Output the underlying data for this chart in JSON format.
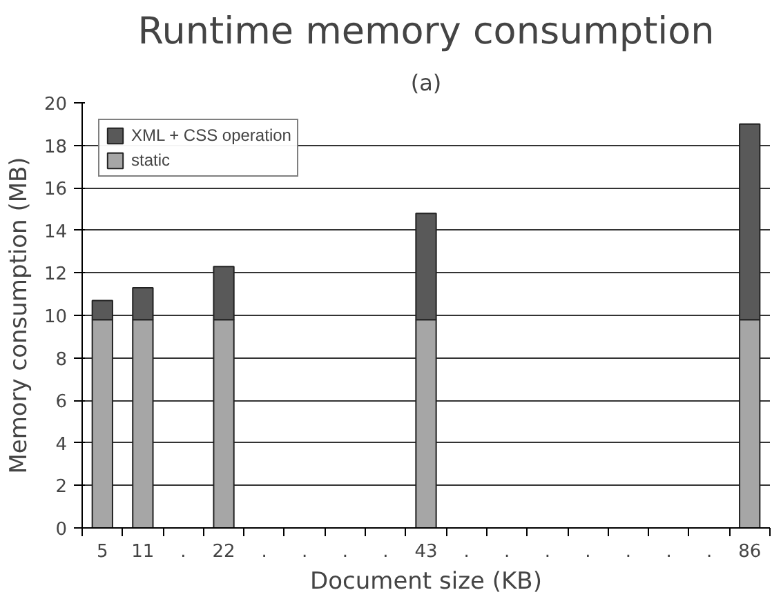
{
  "chart_data": {
    "type": "bar",
    "title": "Runtime memory consumption",
    "xlabel": "Document size (KB)",
    "ylabel": "Memory consumption (MB)",
    "annotations": [
      "(a)"
    ],
    "categories": [
      "5",
      "11",
      ".",
      "22",
      ".",
      ".",
      ".",
      ".",
      "43",
      ".",
      ".",
      ".",
      ".",
      ".",
      ".",
      ".",
      "86"
    ],
    "stacked": true,
    "series": [
      {
        "name": "static",
        "color": "#a6a6a6",
        "values": [
          9.8,
          9.8,
          null,
          9.8,
          null,
          null,
          null,
          null,
          9.8,
          null,
          null,
          null,
          null,
          null,
          null,
          null,
          9.8
        ]
      },
      {
        "name": "XML + CSS operation",
        "color": "#595959",
        "values": [
          0.9,
          1.5,
          null,
          2.5,
          null,
          null,
          null,
          null,
          5.0,
          null,
          null,
          null,
          null,
          null,
          null,
          null,
          9.2
        ]
      }
    ],
    "ylim": [
      0,
      20
    ],
    "yticks": [
      0,
      2,
      4,
      6,
      8,
      10,
      12,
      14,
      16,
      18,
      20
    ],
    "grid": "y",
    "legend": "top left"
  }
}
